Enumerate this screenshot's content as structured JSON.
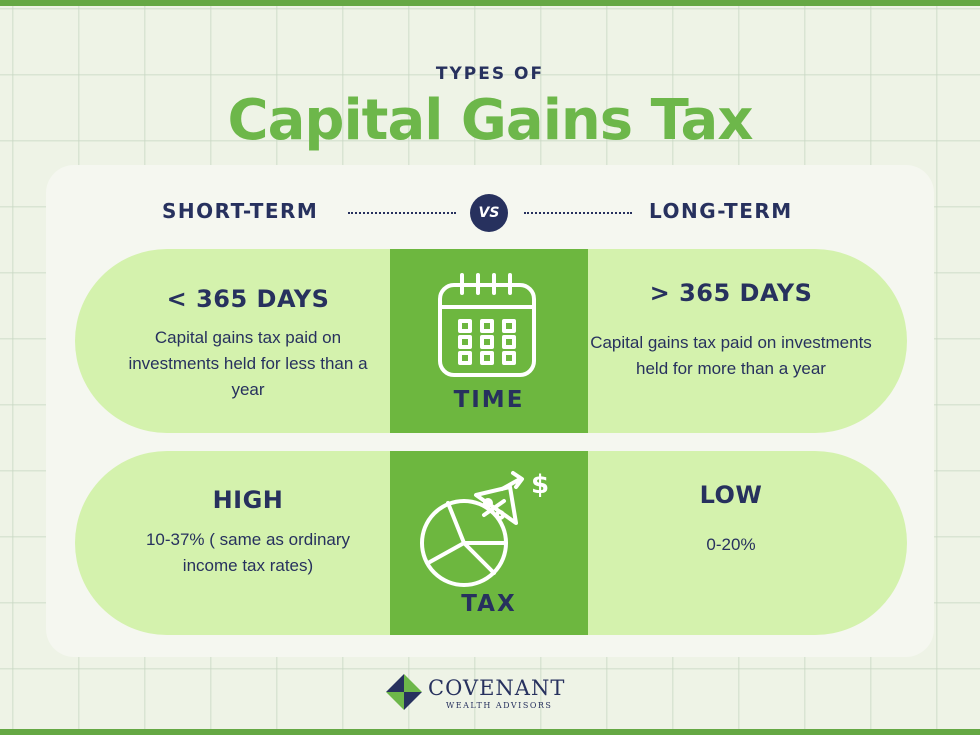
{
  "header": {
    "kicker": "TYPES OF",
    "title": "Capital Gains Tax"
  },
  "columns": {
    "left_label": "SHORT-TERM",
    "vs_label": "VS",
    "right_label": "LONG-TERM"
  },
  "rows": [
    {
      "center_label": "TIME",
      "center_icon": "calendar-icon",
      "left_heading": "< 365 DAYS",
      "left_body": "Capital gains tax paid on investments held for less than a year",
      "right_heading": "> 365 DAYS",
      "right_body": "Capital gains tax paid on investments held for more than a year"
    },
    {
      "center_label": "TAX",
      "center_icon": "pie-chart-tax-icon",
      "left_heading": "HIGH",
      "left_body": "10-37% ( same as ordinary income tax rates)",
      "right_heading": "LOW",
      "right_body": "0-20%"
    }
  ],
  "brand": {
    "name": "COVENANT",
    "tagline": "WEALTH ADVISORS"
  },
  "colors": {
    "accent_green": "#6db74a",
    "navy": "#27315e",
    "pill_green": "#d4f2ad",
    "center_green": "#6db73f",
    "background": "#eef3e6"
  }
}
